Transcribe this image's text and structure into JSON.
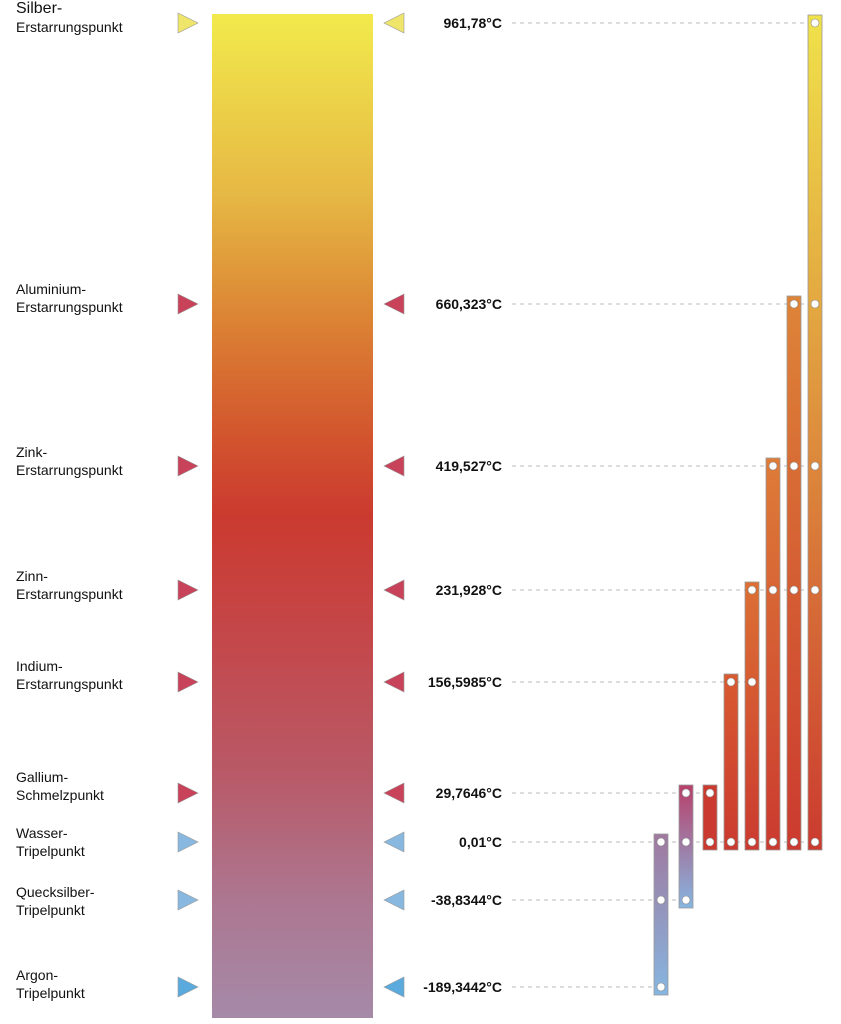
{
  "fixed_points": [
    {
      "name_line1": "Silber-",
      "name_line2": "Erstarrungspunkt",
      "value": "961,78°C",
      "marker_color": "#efe56a"
    },
    {
      "name_line1": "Aluminium-",
      "name_line2": "Erstarrungspunkt",
      "value": "660,323°C",
      "marker_color": "#c8425a"
    },
    {
      "name_line1": "Zink-",
      "name_line2": "Erstarrungspunkt",
      "value": "419,527°C",
      "marker_color": "#c8425a"
    },
    {
      "name_line1": "Zinn-",
      "name_line2": "Erstarrungspunkt",
      "value": "231,928°C",
      "marker_color": "#c8425a"
    },
    {
      "name_line1": "Indium-",
      "name_line2": "Erstarrungspunkt",
      "value": "156,5985°C",
      "marker_color": "#c8425a"
    },
    {
      "name_line1": "Gallium-",
      "name_line2": "Schmelzpunkt",
      "value": "29,7646°C",
      "marker_color": "#c8425a"
    },
    {
      "name_line1": "Wasser-",
      "name_line2": "Tripelpunkt",
      "value": "0,01°C",
      "marker_color": "#88b8e0"
    },
    {
      "name_line1": "Quecksilber-",
      "name_line2": "Tripelpunkt",
      "value": "-38,8344°C",
      "marker_color": "#88b8e0"
    },
    {
      "name_line1": "Argon-",
      "name_line2": "Tripelpunkt",
      "value": "-189,3442°C",
      "marker_color": "#5aaade"
    }
  ],
  "ranges": [
    {
      "from": "-189,3442°C",
      "to": "0,01°C",
      "points": [
        "-189,3442°C",
        "-38,8344°C",
        "0,01°C"
      ],
      "colors": [
        "#86b6e0",
        "#a0789e"
      ]
    },
    {
      "from": "-38,8344°C",
      "to": "29,7646°C",
      "points": [
        "-38,8344°C",
        "0,01°C",
        "29,7646°C"
      ],
      "colors": [
        "#86b6e0",
        "#b8406a"
      ]
    },
    {
      "from": "0,01°C",
      "to": "29,7646°C",
      "points": [
        "0,01°C",
        "29,7646°C"
      ],
      "colors": [
        "#cb3a2f",
        "#cb3a2f"
      ]
    },
    {
      "from": "0,01°C",
      "to": "156,5985°C",
      "points": [
        "0,01°C",
        "156,5985°C"
      ],
      "colors": [
        "#cb3a2f",
        "#d85a30"
      ]
    },
    {
      "from": "0,01°C",
      "to": "231,928°C",
      "points": [
        "0,01°C",
        "156,5985°C",
        "231,928°C"
      ],
      "colors": [
        "#cb3a2f",
        "#dc7034"
      ]
    },
    {
      "from": "0,01°C",
      "to": "419,527°C",
      "points": [
        "0,01°C",
        "231,928°C",
        "419,527°C"
      ],
      "colors": [
        "#cb3a2f",
        "#de7c38"
      ]
    },
    {
      "from": "0,01°C",
      "to": "660,323°C",
      "points": [
        "0,01°C",
        "231,928°C",
        "419,527°C",
        "660,323°C"
      ],
      "colors": [
        "#cb3a2f",
        "#de8438"
      ]
    },
    {
      "from": "0,01°C",
      "to": "961,78°C",
      "points": [
        "0,01°C",
        "231,928°C",
        "419,527°C",
        "660,323°C",
        "961,78°C"
      ],
      "colors": [
        "#cb3a2f",
        "#f0e24a"
      ]
    }
  ]
}
